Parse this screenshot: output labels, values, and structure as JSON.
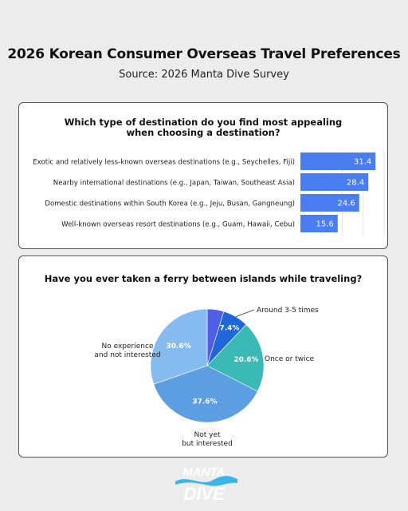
{
  "header": {
    "title": "2026 Korean Consumer Overseas Travel Preferences",
    "subtitle": "Source: 2026 Manta Dive Survey"
  },
  "chart_data": [
    {
      "type": "bar",
      "orientation": "horizontal",
      "title": "Which type of destination do you find most appealing when choosing a destination?",
      "categories": [
        "Exotic and relatively less-known overseas destinations (e.g., Seychelles, Fiji)",
        "Nearby international destinations (e.g., Japan, Taiwan, Southeast Asia)",
        "Domestic destinations within South Korea (e.g., Jeju, Busan, Gangneung)",
        "Well-known overseas resort destinations (e.g., Guam, Hawaii, Cebu)"
      ],
      "values": [
        31.4,
        28.4,
        24.6,
        15.6
      ],
      "xlim": [
        0,
        35
      ],
      "color": "#4a7df0"
    },
    {
      "type": "pie",
      "title": "Have you ever taken a ferry between islands while traveling?",
      "labels": [
        "",
        "Around 3-5 times",
        "Once or twice",
        "Not yet\nbut interested",
        "No experience\nand not interested"
      ],
      "values": [
        4.8,
        7.4,
        20.6,
        37.6,
        30.6
      ],
      "value_labels": [
        "",
        "7.4%",
        "20.6%",
        "37.6%",
        "30.6%"
      ],
      "colors": [
        "#4f5fe8",
        "#1f67d8",
        "#3bbab5",
        "#5b9ee2",
        "#86bbef"
      ]
    }
  ],
  "logo": {
    "line1": "MANTA",
    "line2": "DIVE",
    "color": "#ffffff",
    "wave_color": "#39b5e8"
  }
}
